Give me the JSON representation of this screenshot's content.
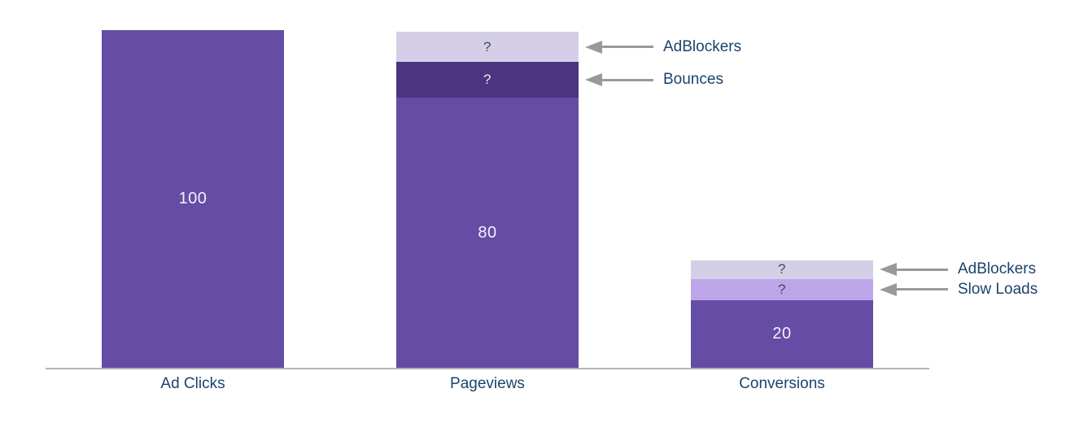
{
  "chart_data": {
    "type": "bar",
    "subtype": "stacked-funnel",
    "title": "",
    "xlabel": "",
    "ylabel": "",
    "grid": false,
    "legend": "none (inline arrow annotations)",
    "axis_color": "#b3b3b8",
    "annotation_text_color": "#1b436e",
    "category_text_color": "#1b436e",
    "arrow_color": "#999999",
    "value_scale_note": "values are in same units as Ad Clicks = 100; '?' segments estimated from pixel heights",
    "categories": [
      "Ad Clicks",
      "Pageviews",
      "Conversions"
    ],
    "bars": [
      {
        "category": "Ad Clicks",
        "total_labeled": 100,
        "segments": [
          {
            "name": "ad-clicks-main",
            "display_label": "100",
            "value": 100,
            "color": "#654ca5",
            "label_color": "#f4f1fa",
            "label_size": "normal",
            "annotation": null
          }
        ]
      },
      {
        "category": "Pageviews",
        "total_labeled": 80,
        "segments": [
          {
            "name": "pageviews-main",
            "display_label": "80",
            "value": 80,
            "color": "#654ca5",
            "label_color": "#f4f1fa",
            "label_size": "normal",
            "annotation": null
          },
          {
            "name": "bounces",
            "display_label": "?",
            "value": 10.6,
            "color": "#4b3480",
            "label_color": "#efebf6",
            "label_size": "small",
            "annotation": "Bounces"
          },
          {
            "name": "adblockers-pageviews",
            "display_label": "?",
            "value": 8.9,
            "color": "#d4cfe6",
            "label_color": "#4a4a4a",
            "label_size": "small",
            "annotation": "AdBlockers"
          }
        ]
      },
      {
        "category": "Conversions",
        "total_labeled": 20,
        "segments": [
          {
            "name": "conversions-main",
            "display_label": "20",
            "value": 20,
            "color": "#654ca5",
            "label_color": "#f4f1fa",
            "label_size": "normal",
            "annotation": null
          },
          {
            "name": "slow-loads",
            "display_label": "?",
            "value": 6.3,
            "color": "#bca6e9",
            "label_color": "#4a4a4a",
            "label_size": "small",
            "annotation": "Slow Loads"
          },
          {
            "name": "adblockers-conversions",
            "display_label": "?",
            "value": 5.5,
            "color": "#d4cfe6",
            "label_color": "#4a4a4a",
            "label_size": "small",
            "annotation": "AdBlockers"
          }
        ]
      }
    ]
  }
}
